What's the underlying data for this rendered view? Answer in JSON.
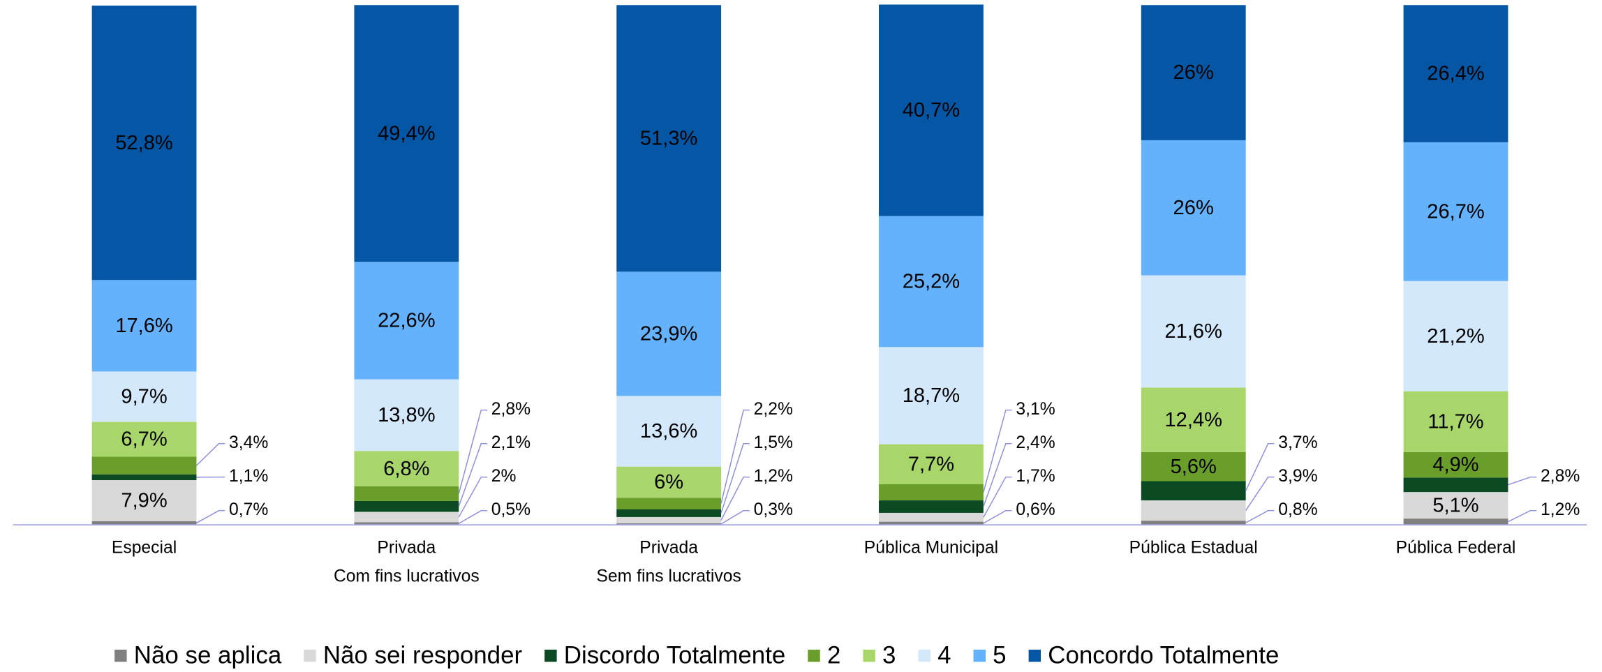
{
  "chart_data": {
    "type": "stacked_bar",
    "categories": [
      "Especial",
      "Privada\nCom fins lucrativos",
      "Privada\nSem fins lucrativos",
      "Pública Municipal",
      "Pública Estadual",
      "Pública Federal"
    ],
    "ylim": [
      0,
      100
    ],
    "series": [
      {
        "name": "Não se aplica",
        "color": "#808080",
        "values": [
          0.7,
          0.5,
          0.3,
          0.6,
          0.8,
          1.2
        ],
        "value_labels": [
          "0,7%",
          "0,5%",
          "0,3%",
          "0,6%",
          "0,8%",
          "1,2%"
        ]
      },
      {
        "name": "Não sei responder",
        "color": "#d9d9d9",
        "values": [
          7.9,
          2,
          1.2,
          1.7,
          3.9,
          5.1
        ],
        "value_labels": [
          "7,9%",
          "2%",
          "1,2%",
          "1,7%",
          "3,9%",
          "5,1%"
        ]
      },
      {
        "name": "Discordo Totalmente",
        "color": "#0b4a22",
        "values": [
          1.1,
          2.1,
          1.5,
          2.4,
          3.7,
          2.8
        ],
        "value_labels": [
          "1,1%",
          "2,1%",
          "1,5%",
          "2,4%",
          "3,7%",
          "2,8%"
        ]
      },
      {
        "name": "2",
        "color": "#6a9e2a",
        "values": [
          3.4,
          2.8,
          2.2,
          3.1,
          5.6,
          4.9
        ],
        "value_labels": [
          "3,4%",
          "2,8%",
          "2,2%",
          "3,1%",
          "5,6%",
          "4,9%"
        ]
      },
      {
        "name": "3",
        "color": "#a9d66b",
        "values": [
          6.7,
          6.8,
          6,
          7.7,
          12.4,
          11.7
        ],
        "value_labels": [
          "6,7%",
          "6,8%",
          "6%",
          "7,7%",
          "12,4%",
          "11,7%"
        ]
      },
      {
        "name": "4",
        "color": "#d3e8fb",
        "values": [
          9.7,
          13.8,
          13.6,
          18.7,
          21.6,
          21.2
        ],
        "value_labels": [
          "9,7%",
          "13,8%",
          "13,6%",
          "18,7%",
          "21,6%",
          "21,2%"
        ]
      },
      {
        "name": "5",
        "color": "#63b2fb",
        "values": [
          17.6,
          22.6,
          23.9,
          25.2,
          26,
          26.7
        ],
        "value_labels": [
          "17,6%",
          "22,6%",
          "23,9%",
          "25,2%",
          "26%",
          "26,7%"
        ]
      },
      {
        "name": "Concordo Totalmente",
        "color": "#0557a5",
        "values": [
          52.8,
          49.4,
          51.3,
          40.7,
          26,
          26.4
        ],
        "value_labels": [
          "52,8%",
          "49,4%",
          "51,3%",
          "40,7%",
          "26%",
          "26,4%"
        ]
      }
    ]
  }
}
